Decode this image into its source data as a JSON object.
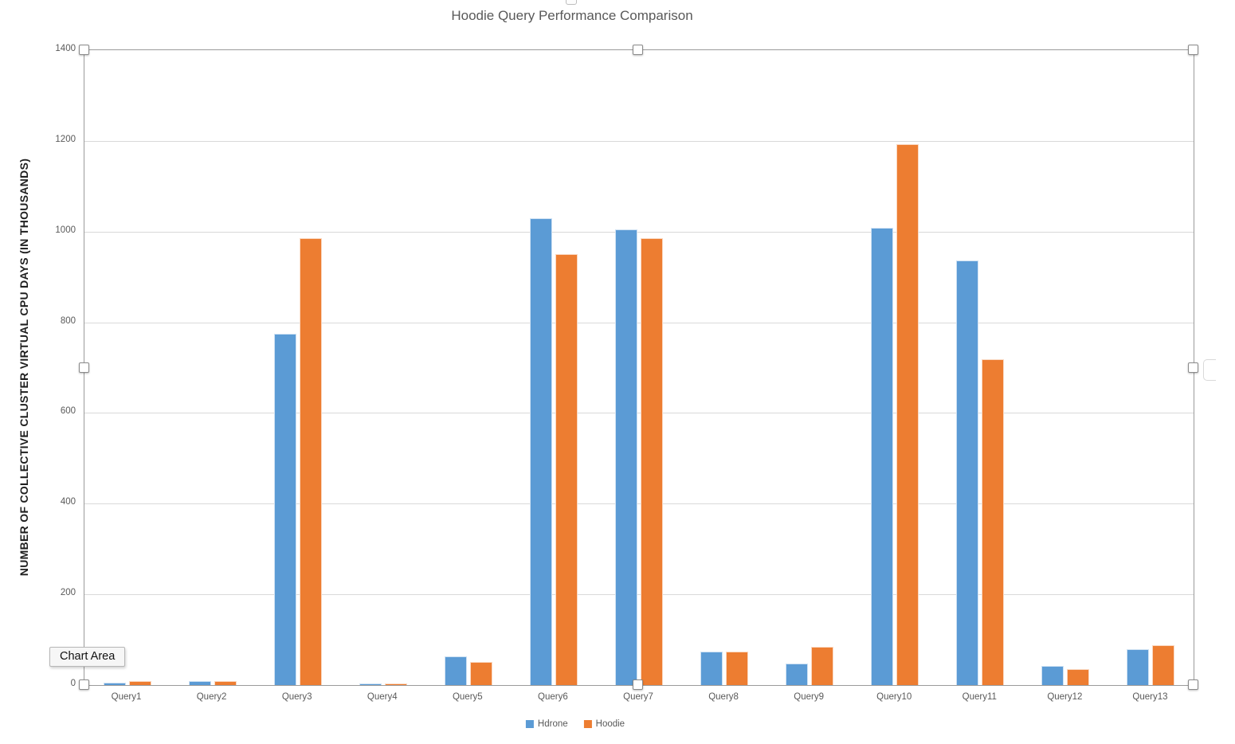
{
  "window": {
    "tooltip_label": "Chart Area"
  },
  "chart_data": {
    "type": "bar",
    "title": "Hoodie Query Performance Comparison",
    "xlabel": "",
    "ylabel": "NUMBER OF COLLECTIVE CLUSTER VIRTUAL CPU DAYS (IN THOUSANDS)",
    "categories": [
      "Query1",
      "Query2",
      "Query3",
      "Query4",
      "Query5",
      "Query6",
      "Query7",
      "Query8",
      "Query9",
      "Query10",
      "Query11",
      "Query12",
      "Query13"
    ],
    "series": [
      {
        "name": "Hdrone",
        "color": "#5B9BD5",
        "values": [
          5,
          9,
          775,
          4,
          63,
          1030,
          1005,
          74,
          48,
          1008,
          936,
          42,
          79
        ]
      },
      {
        "name": "Hoodie",
        "color": "#ED7D31",
        "values": [
          8,
          8,
          985,
          4,
          51,
          950,
          985,
          74,
          85,
          1193,
          719,
          35,
          88
        ]
      }
    ],
    "ylim": [
      0,
      1400
    ],
    "yticks": [
      0,
      200,
      400,
      600,
      800,
      1000,
      1200,
      1400
    ],
    "grid": true,
    "legend_position": "bottom"
  },
  "colors": {
    "series_hdrone": "#5B9BD5",
    "series_hoodie": "#ED7D31",
    "gridline": "#d9d9d9",
    "axis_line": "#9b9b9b",
    "text_muted": "#595959"
  }
}
